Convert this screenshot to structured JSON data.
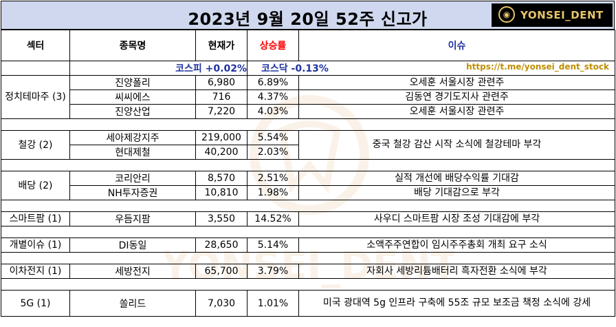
{
  "title": "2023년 9월 20일 52주 신고가",
  "logo": "YONSEI_DENT",
  "watermark": "YONSEI_DENT",
  "headers": {
    "sector": "섹터",
    "name": "종목명",
    "price": "현재가",
    "rate": "상승률",
    "issue": "이슈"
  },
  "index_row": {
    "kospi": "코스피 +0.02%",
    "kosdaq": "코스닥 -0.13%",
    "link": "https://t.me/yonsei_dent_stock"
  },
  "groups": [
    {
      "sector": "정치테마주 (3)",
      "rows": [
        {
          "name": "진양폴리",
          "price": "6,980",
          "rate": "6.89%",
          "issue": "오세훈 서울시장 관련주"
        },
        {
          "name": "씨씨에스",
          "price": "716",
          "rate": "4.37%",
          "issue": "김동연 경기도지사 관련주"
        },
        {
          "name": "진양산업",
          "price": "7,220",
          "rate": "4.03%",
          "issue": "오세훈 서울시장 관련주"
        }
      ]
    },
    {
      "sector": "철강 (2)",
      "rows": [
        {
          "name": "세아제강지주",
          "price": "219,000",
          "rate": "5.54%",
          "issue": "중국 철강 감산 시작 소식에 철강테마 부각"
        },
        {
          "name": "현대제철",
          "price": "40,200",
          "rate": "2.03%",
          "issue": ""
        }
      ]
    },
    {
      "sector": "배당 (2)",
      "rows": [
        {
          "name": "코리안리",
          "price": "8,570",
          "rate": "2.51%",
          "issue": "실적 개선에 배당수익률 기대감"
        },
        {
          "name": "NH투자증권",
          "price": "10,810",
          "rate": "1.98%",
          "issue": "배당 기대감으로 부각"
        }
      ]
    },
    {
      "sector": "스마트팜 (1)",
      "rows": [
        {
          "name": "우듬지팜",
          "price": "3,550",
          "rate": "14.52%",
          "issue": "사우디 스마트팜 시장 조성 기대감에 부각"
        }
      ]
    },
    {
      "sector": "개별이슈 (1)",
      "rows": [
        {
          "name": "DI동일",
          "price": "28,650",
          "rate": "5.14%",
          "issue": "소액주주연합이 임시주주총회 개최 요구 소식"
        }
      ]
    },
    {
      "sector": "이차전지 (1)",
      "rows": [
        {
          "name": "세방전지",
          "price": "65,700",
          "rate": "3.79%",
          "issue": "자회사 세방리튬배터리 흑자전환 소식에 부각"
        }
      ]
    },
    {
      "sector": "5G (1)",
      "rows": [
        {
          "name": "쏠리드",
          "price": "7,030",
          "rate": "1.01%",
          "issue": "미국 광대역 5g 인프라 구축에 55조 규모 보조금 책정 소식에 강세"
        }
      ]
    }
  ]
}
